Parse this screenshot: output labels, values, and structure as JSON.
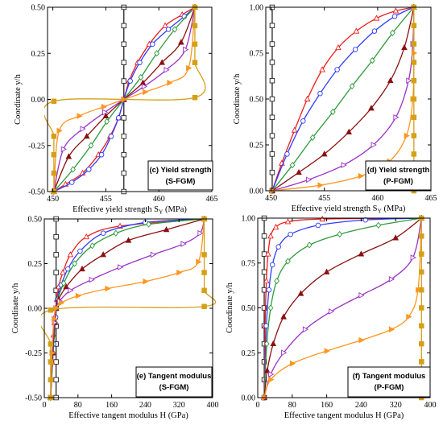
{
  "figure": {
    "background": "#ffffff",
    "color_legend": {
      "black": "#222222",
      "red": "#ee1c1c",
      "blue": "#2f3cff",
      "green": "#2e9a3a",
      "darkred": "#8b1010",
      "purple": "#9b32c8",
      "orange": "#ff9620",
      "gold": "#d4a017"
    }
  },
  "chart_data": [
    {
      "id": "c",
      "type": "line",
      "annotation": [
        "(c) Yield strength",
        "(S-FGM)"
      ],
      "xlabel": "Effective yield strength S",
      "xlabel_sub": "Y",
      "xlabel_unit": " (MPa)",
      "ylabel": "Coordinate y/h",
      "xlim": [
        449.5,
        465
      ],
      "ylim": [
        -0.5,
        0.5
      ],
      "xticks": [
        450,
        455,
        460,
        465
      ],
      "xticklabels": [
        "450",
        "455",
        "460",
        "465"
      ],
      "yticks": [
        -0.5,
        -0.25,
        0,
        0.25,
        0.5
      ],
      "yticklabels": [
        "-0.50",
        "-0.25",
        "0.00",
        "0.25",
        "0.50"
      ],
      "grid": false,
      "series": [
        {
          "color": "#222222",
          "marker": "square",
          "x": [
            456.7,
            456.7,
            456.7,
            456.7,
            456.7,
            456.7,
            456.7,
            456.7,
            456.7,
            456.7,
            456.7
          ],
          "y": [
            -0.5,
            -0.4,
            -0.3,
            -0.2,
            -0.1,
            0,
            0.1,
            0.2,
            0.3,
            0.4,
            0.5
          ]
        },
        {
          "color": "#ee1c1c",
          "marker": "triangle-up",
          "x": [
            450.1,
            451.2,
            452.8,
            454.3,
            455.4,
            456.2,
            456.7,
            457.2,
            458.0,
            459.1,
            460.6,
            462.2,
            463.4
          ],
          "y": [
            -0.5,
            -0.46,
            -0.4,
            -0.3,
            -0.2,
            -0.1,
            0,
            0.1,
            0.2,
            0.3,
            0.4,
            0.46,
            0.5
          ]
        },
        {
          "color": "#2f3cff",
          "marker": "circle",
          "x": [
            450.1,
            451.8,
            453.4,
            454.6,
            455.5,
            456.2,
            456.7,
            457.3,
            458.2,
            459.4,
            460.9,
            462.4,
            463.4
          ],
          "y": [
            -0.5,
            -0.45,
            -0.38,
            -0.3,
            -0.2,
            -0.1,
            0,
            0.1,
            0.2,
            0.3,
            0.38,
            0.45,
            0.5
          ]
        },
        {
          "color": "#2e9a3a",
          "marker": "diamond",
          "x": [
            450.1,
            451.9,
            453.6,
            455.1,
            456.7,
            458.3,
            459.8,
            461.5,
            463.4
          ],
          "y": [
            -0.5,
            -0.38,
            -0.25,
            -0.12,
            0,
            0.12,
            0.25,
            0.38,
            0.5
          ]
        },
        {
          "color": "#8b1010",
          "marker": "triangle-up-filled",
          "x": [
            450.1,
            451.5,
            453.2,
            455.0,
            456.7,
            458.5,
            460.3,
            462.1,
            463.4
          ],
          "y": [
            -0.5,
            -0.31,
            -0.2,
            -0.09,
            0,
            0.09,
            0.2,
            0.31,
            0.5
          ]
        },
        {
          "color": "#9b32c8",
          "marker": "triangle-right",
          "x": [
            450.1,
            451.0,
            452.8,
            454.9,
            456.7,
            458.6,
            460.7,
            462.5,
            463.4
          ],
          "y": [
            -0.5,
            -0.27,
            -0.16,
            -0.07,
            0,
            0.07,
            0.16,
            0.27,
            0.5
          ]
        },
        {
          "color": "#ff9620",
          "marker": "triangle-right-filled",
          "x": [
            450.1,
            450.6,
            452.5,
            454.8,
            456.7,
            458.7,
            461.0,
            462.8,
            463.4
          ],
          "y": [
            -0.5,
            -0.17,
            -0.09,
            -0.04,
            0,
            0.04,
            0.09,
            0.17,
            0.5
          ]
        },
        {
          "color": "#d4a017",
          "marker": "square-filled",
          "x": [
            450.1,
            450.1,
            450.1,
            450.1,
            450.1,
            463.4,
            463.4,
            463.4,
            463.4,
            463.4
          ],
          "y": [
            -0.5,
            -0.4,
            -0.3,
            -0.2,
            -0.01,
            0.01,
            0.2,
            0.3,
            0.4,
            0.5
          ]
        }
      ]
    },
    {
      "id": "d",
      "type": "line",
      "annotation": [
        "(d) Yield strength",
        "(P-FGM)"
      ],
      "xlabel": "Effective yield strength S",
      "xlabel_sub": "Y",
      "xlabel_unit": " (MPa)",
      "ylabel": "Coordinate y/h",
      "xlim": [
        449.5,
        465
      ],
      "ylim": [
        0,
        1
      ],
      "xticks": [
        450,
        455,
        460,
        465
      ],
      "xticklabels": [
        "450",
        "455",
        "460",
        "465"
      ],
      "yticks": [
        0,
        0.25,
        0.5,
        0.75,
        1
      ],
      "yticklabels": [
        "0.00",
        "0.25",
        "0.50",
        "0.75",
        "1.00"
      ],
      "grid": false,
      "series": [
        {
          "color": "#222222",
          "marker": "square",
          "x": [
            450.1,
            450.1,
            450.1,
            450.1,
            450.1,
            450.1,
            450.1,
            450.1,
            450.1,
            450.1,
            450.1
          ],
          "y": [
            0,
            0.1,
            0.2,
            0.3,
            0.4,
            0.5,
            0.6,
            0.7,
            0.8,
            0.9,
            1.0
          ]
        },
        {
          "color": "#ee1c1c",
          "marker": "triangle-up",
          "x": [
            450.1,
            451.0,
            452.2,
            453.4,
            454.8,
            456.3,
            458.0,
            459.9,
            461.7,
            463.4
          ],
          "y": [
            0,
            0.15,
            0.33,
            0.5,
            0.66,
            0.78,
            0.87,
            0.94,
            0.98,
            1.0
          ]
        },
        {
          "color": "#2f3cff",
          "marker": "circle",
          "x": [
            450.1,
            451.5,
            453.0,
            454.6,
            456.2,
            457.9,
            459.7,
            461.6,
            463.4
          ],
          "y": [
            0,
            0.2,
            0.38,
            0.53,
            0.66,
            0.77,
            0.87,
            0.95,
            1.0
          ]
        },
        {
          "color": "#2e9a3a",
          "marker": "diamond",
          "x": [
            450.1,
            452.0,
            453.9,
            455.8,
            457.6,
            459.5,
            461.4,
            463.4
          ],
          "y": [
            0,
            0.14,
            0.29,
            0.43,
            0.57,
            0.71,
            0.86,
            1.0
          ]
        },
        {
          "color": "#8b1010",
          "marker": "triangle-up-filled",
          "x": [
            450.1,
            452.6,
            455.0,
            457.3,
            459.4,
            461.2,
            462.5,
            463.4
          ],
          "y": [
            0,
            0.1,
            0.2,
            0.32,
            0.45,
            0.6,
            0.78,
            1.0
          ]
        },
        {
          "color": "#9b32c8",
          "marker": "triangle-right",
          "x": [
            450.1,
            453.5,
            456.8,
            459.6,
            461.7,
            462.9,
            463.3,
            463.4
          ],
          "y": [
            0,
            0.06,
            0.14,
            0.25,
            0.4,
            0.6,
            0.8,
            1.0
          ]
        },
        {
          "color": "#ff9620",
          "marker": "triangle-right-filled",
          "x": [
            450.1,
            454.6,
            458.4,
            461.1,
            462.7,
            463.3,
            463.4,
            463.4
          ],
          "y": [
            0,
            0.03,
            0.08,
            0.16,
            0.3,
            0.5,
            0.75,
            1.0
          ]
        },
        {
          "color": "#d4a017",
          "marker": "square-filled",
          "x": [
            463.4,
            463.4,
            463.4,
            463.4,
            463.4,
            463.4,
            463.4,
            463.4,
            463.4,
            463.4,
            463.4
          ],
          "y": [
            0,
            0.1,
            0.2,
            0.3,
            0.4,
            0.5,
            0.6,
            0.7,
            0.8,
            0.9,
            1.0
          ]
        }
      ]
    },
    {
      "id": "e",
      "type": "line",
      "annotation": [
        "(e) Tangent modulus",
        "(S-FGM)"
      ],
      "xlabel": "Effective tangent modulus H",
      "xlabel_sub": "",
      "xlabel_unit": " (GPa)",
      "ylabel": "Coordinate y/h",
      "xlim": [
        0,
        400
      ],
      "ylim": [
        -0.5,
        0.5
      ],
      "xticks": [
        0,
        80,
        160,
        240,
        320,
        400
      ],
      "xticklabels": [
        "0",
        "80",
        "160",
        "240",
        "320",
        "400"
      ],
      "yticks": [
        -0.5,
        -0.25,
        0,
        0.25,
        0.5
      ],
      "yticklabels": [
        "-0.50",
        "-0.25",
        "0.00",
        "0.25",
        "0.50"
      ],
      "grid": false,
      "series": [
        {
          "color": "#222222",
          "marker": "square",
          "x": [
            28,
            28,
            28,
            28,
            28,
            28,
            28,
            28,
            28,
            28,
            28
          ],
          "y": [
            -0.5,
            -0.4,
            -0.3,
            -0.2,
            -0.1,
            0,
            0.1,
            0.2,
            0.3,
            0.4,
            0.5
          ]
        },
        {
          "color": "#ee1c1c",
          "marker": "triangle-up",
          "x": [
            15,
            18,
            22,
            26,
            28,
            30,
            34,
            44,
            62,
            100,
            180,
            380
          ],
          "y": [
            -0.5,
            -0.3,
            -0.15,
            -0.05,
            0,
            0.05,
            0.12,
            0.2,
            0.3,
            0.4,
            0.46,
            0.5
          ]
        },
        {
          "color": "#2f3cff",
          "marker": "circle",
          "x": [
            15,
            22,
            27,
            28,
            31,
            40,
            56,
            85,
            140,
            240,
            380
          ],
          "y": [
            -0.5,
            -0.2,
            -0.05,
            0,
            0.05,
            0.13,
            0.22,
            0.32,
            0.42,
            0.48,
            0.5
          ]
        },
        {
          "color": "#2e9a3a",
          "marker": "diamond",
          "x": [
            15,
            21,
            26,
            28,
            32,
            46,
            72,
            114,
            170,
            248,
            380
          ],
          "y": [
            -0.5,
            -0.25,
            -0.08,
            0,
            0.05,
            0.14,
            0.25,
            0.35,
            0.42,
            0.47,
            0.5
          ]
        },
        {
          "color": "#8b1010",
          "marker": "triangle-up-filled",
          "x": [
            15,
            20,
            25,
            28,
            34,
            52,
            90,
            140,
            200,
            290,
            380
          ],
          "y": [
            -0.5,
            -0.25,
            -0.08,
            0,
            0.05,
            0.12,
            0.22,
            0.3,
            0.38,
            0.44,
            0.5
          ]
        },
        {
          "color": "#9b32c8",
          "marker": "triangle-right",
          "x": [
            15,
            19,
            24,
            28,
            36,
            62,
            112,
            180,
            258,
            330,
            370,
            380
          ],
          "y": [
            -0.5,
            -0.25,
            -0.08,
            0,
            0.04,
            0.1,
            0.16,
            0.23,
            0.3,
            0.36,
            0.42,
            0.5
          ]
        },
        {
          "color": "#ff9620",
          "marker": "triangle-right-filled",
          "x": [
            15,
            18,
            23,
            28,
            40,
            80,
            150,
            240,
            320,
            366,
            380
          ],
          "y": [
            -0.5,
            -0.25,
            -0.06,
            0,
            0.03,
            0.07,
            0.11,
            0.15,
            0.2,
            0.26,
            0.5
          ]
        },
        {
          "color": "#d4a017",
          "marker": "square-filled",
          "x": [
            15,
            15,
            15,
            15,
            15,
            380,
            380,
            380,
            380,
            380
          ],
          "y": [
            -0.5,
            -0.4,
            -0.3,
            -0.2,
            -0.01,
            0.01,
            0.1,
            0.2,
            0.3,
            0.5
          ]
        }
      ]
    },
    {
      "id": "f",
      "type": "line",
      "annotation": [
        "(f) Tangent modulus",
        "(P-FGM)"
      ],
      "xlabel": "Effective tangent modulus H",
      "xlabel_sub": "",
      "xlabel_unit": " (GPa)",
      "ylabel": "Coordinate y/h",
      "xlim": [
        0,
        400
      ],
      "ylim": [
        0,
        1
      ],
      "xticks": [
        0,
        80,
        160,
        240,
        320,
        400
      ],
      "xticklabels": [
        "0",
        "80",
        "160",
        "240",
        "320",
        "400"
      ],
      "yticks": [
        0,
        0.25,
        0.5,
        0.75,
        1
      ],
      "yticklabels": [
        "0.00",
        "0.25",
        "0.50",
        "0.75",
        "1.00"
      ],
      "grid": false,
      "series": [
        {
          "color": "#222222",
          "marker": "square",
          "x": [
            15,
            15,
            15,
            15,
            15,
            15,
            15,
            15,
            15,
            15,
            15
          ],
          "y": [
            0,
            0.1,
            0.2,
            0.3,
            0.4,
            0.5,
            0.6,
            0.7,
            0.8,
            0.9,
            1.0
          ]
        },
        {
          "color": "#ee1c1c",
          "marker": "triangle-up",
          "x": [
            15,
            17,
            20,
            24,
            30,
            42,
            70,
            150,
            380
          ],
          "y": [
            0,
            0.4,
            0.65,
            0.8,
            0.9,
            0.95,
            0.98,
            0.995,
            1.0
          ]
        },
        {
          "color": "#2f3cff",
          "marker": "circle",
          "x": [
            15,
            20,
            26,
            34,
            48,
            76,
            140,
            250,
            380
          ],
          "y": [
            0,
            0.4,
            0.6,
            0.74,
            0.84,
            0.91,
            0.96,
            0.99,
            1.0
          ]
        },
        {
          "color": "#2e9a3a",
          "marker": "diamond",
          "x": [
            15,
            21,
            30,
            44,
            70,
            120,
            190,
            280,
            380
          ],
          "y": [
            0,
            0.3,
            0.5,
            0.65,
            0.76,
            0.85,
            0.91,
            0.96,
            1.0
          ]
        },
        {
          "color": "#8b1010",
          "marker": "triangle-up-filled",
          "x": [
            15,
            22,
            36,
            60,
            100,
            160,
            240,
            320,
            380
          ],
          "y": [
            0,
            0.15,
            0.3,
            0.45,
            0.58,
            0.7,
            0.8,
            0.89,
            1.0
          ]
        },
        {
          "color": "#9b32c8",
          "marker": "triangle-right",
          "x": [
            15,
            30,
            60,
            110,
            170,
            240,
            310,
            360,
            380
          ],
          "y": [
            0,
            0.13,
            0.25,
            0.38,
            0.48,
            0.57,
            0.66,
            0.78,
            1.0
          ]
        },
        {
          "color": "#ff9620",
          "marker": "triangle-right-filled",
          "x": [
            15,
            30,
            80,
            160,
            240,
            310,
            350,
            372,
            380
          ],
          "y": [
            0,
            0.1,
            0.19,
            0.26,
            0.32,
            0.38,
            0.45,
            0.6,
            1.0
          ]
        },
        {
          "color": "#d4a017",
          "marker": "square-filled",
          "x": [
            380,
            380,
            380,
            380,
            380,
            380,
            380,
            380,
            380,
            380,
            380
          ],
          "y": [
            0,
            0.1,
            0.2,
            0.3,
            0.4,
            0.5,
            0.6,
            0.7,
            0.8,
            0.9,
            1.0
          ]
        }
      ]
    }
  ]
}
